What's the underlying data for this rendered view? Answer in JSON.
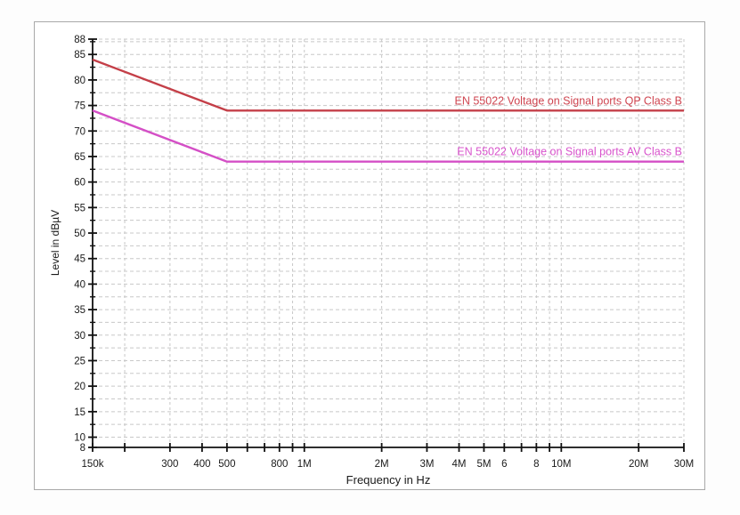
{
  "page": {
    "background": "#ffffff",
    "frame_border": "#a9a9a9"
  },
  "chart_data": {
    "type": "line",
    "title": "",
    "xlabel": "Frequency in Hz",
    "ylabel": "Level in dBµV",
    "x_scale": "log",
    "x_min_hz": 150000,
    "x_max_hz": 30000000,
    "y_min": 8,
    "y_max": 88,
    "grid": {
      "on": true,
      "color": "#c8c8c8",
      "y_step": 2.5
    },
    "axis_color": "#111111",
    "tick_label_color": "#1a1a1a",
    "x_ticks": [
      {
        "hz": 150000,
        "label": "150k"
      },
      {
        "hz": 200000,
        "label": ""
      },
      {
        "hz": 300000,
        "label": "300"
      },
      {
        "hz": 400000,
        "label": "400"
      },
      {
        "hz": 500000,
        "label": "500"
      },
      {
        "hz": 600000,
        "label": ""
      },
      {
        "hz": 700000,
        "label": ""
      },
      {
        "hz": 800000,
        "label": "800"
      },
      {
        "hz": 900000,
        "label": ""
      },
      {
        "hz": 1000000,
        "label": "1M"
      },
      {
        "hz": 2000000,
        "label": "2M"
      },
      {
        "hz": 3000000,
        "label": "3M"
      },
      {
        "hz": 4000000,
        "label": "4M"
      },
      {
        "hz": 5000000,
        "label": "5M"
      },
      {
        "hz": 6000000,
        "label": "6"
      },
      {
        "hz": 7000000,
        "label": ""
      },
      {
        "hz": 8000000,
        "label": "8"
      },
      {
        "hz": 9000000,
        "label": ""
      },
      {
        "hz": 10000000,
        "label": "10M"
      },
      {
        "hz": 20000000,
        "label": "20M"
      },
      {
        "hz": 30000000,
        "label": "30M"
      }
    ],
    "y_major_ticks": [
      88,
      85,
      80,
      75,
      70,
      65,
      60,
      55,
      50,
      45,
      40,
      35,
      30,
      25,
      20,
      15,
      10,
      8
    ],
    "series": [
      {
        "name": "EN 55022 Voltage on Signal ports QP Class B",
        "color": "#c43f48",
        "label_color": "#cf4550",
        "points_hz_db": [
          [
            150000,
            84
          ],
          [
            500000,
            74
          ],
          [
            30000000,
            74
          ]
        ]
      },
      {
        "name": "EN 55022 Voltage on Signal ports AV Class B",
        "color": "#d44fc6",
        "label_color": "#d854cc",
        "points_hz_db": [
          [
            150000,
            74
          ],
          [
            500000,
            64
          ],
          [
            30000000,
            64
          ]
        ]
      }
    ]
  }
}
